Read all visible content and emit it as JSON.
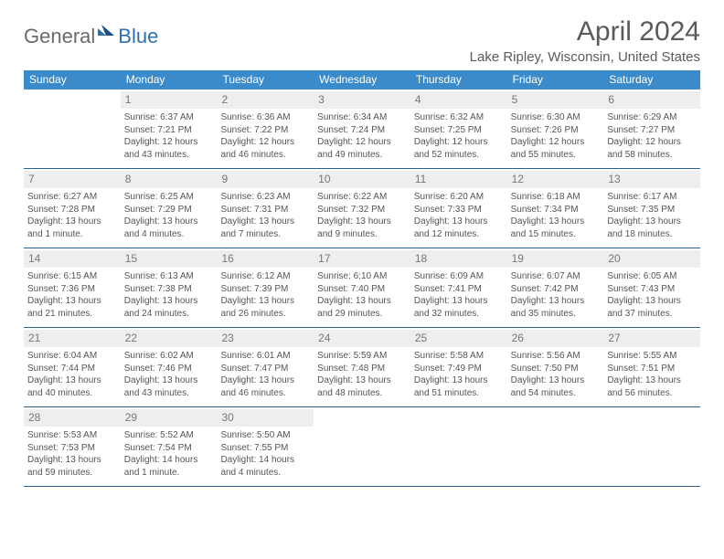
{
  "logo": {
    "general": "General",
    "blue": "Blue"
  },
  "title": "April 2024",
  "location": "Lake Ripley, Wisconsin, United States",
  "colors": {
    "header_bg": "#3b8bca",
    "border": "#2d5f8f",
    "daynum_bg": "#eeeeee",
    "text": "#555555"
  },
  "dayNames": [
    "Sunday",
    "Monday",
    "Tuesday",
    "Wednesday",
    "Thursday",
    "Friday",
    "Saturday"
  ],
  "weeks": [
    [
      null,
      {
        "n": "1",
        "sr": "Sunrise: 6:37 AM",
        "ss": "Sunset: 7:21 PM",
        "dl": "Daylight: 12 hours and 43 minutes."
      },
      {
        "n": "2",
        "sr": "Sunrise: 6:36 AM",
        "ss": "Sunset: 7:22 PM",
        "dl": "Daylight: 12 hours and 46 minutes."
      },
      {
        "n": "3",
        "sr": "Sunrise: 6:34 AM",
        "ss": "Sunset: 7:24 PM",
        "dl": "Daylight: 12 hours and 49 minutes."
      },
      {
        "n": "4",
        "sr": "Sunrise: 6:32 AM",
        "ss": "Sunset: 7:25 PM",
        "dl": "Daylight: 12 hours and 52 minutes."
      },
      {
        "n": "5",
        "sr": "Sunrise: 6:30 AM",
        "ss": "Sunset: 7:26 PM",
        "dl": "Daylight: 12 hours and 55 minutes."
      },
      {
        "n": "6",
        "sr": "Sunrise: 6:29 AM",
        "ss": "Sunset: 7:27 PM",
        "dl": "Daylight: 12 hours and 58 minutes."
      }
    ],
    [
      {
        "n": "7",
        "sr": "Sunrise: 6:27 AM",
        "ss": "Sunset: 7:28 PM",
        "dl": "Daylight: 13 hours and 1 minute."
      },
      {
        "n": "8",
        "sr": "Sunrise: 6:25 AM",
        "ss": "Sunset: 7:29 PM",
        "dl": "Daylight: 13 hours and 4 minutes."
      },
      {
        "n": "9",
        "sr": "Sunrise: 6:23 AM",
        "ss": "Sunset: 7:31 PM",
        "dl": "Daylight: 13 hours and 7 minutes."
      },
      {
        "n": "10",
        "sr": "Sunrise: 6:22 AM",
        "ss": "Sunset: 7:32 PM",
        "dl": "Daylight: 13 hours and 9 minutes."
      },
      {
        "n": "11",
        "sr": "Sunrise: 6:20 AM",
        "ss": "Sunset: 7:33 PM",
        "dl": "Daylight: 13 hours and 12 minutes."
      },
      {
        "n": "12",
        "sr": "Sunrise: 6:18 AM",
        "ss": "Sunset: 7:34 PM",
        "dl": "Daylight: 13 hours and 15 minutes."
      },
      {
        "n": "13",
        "sr": "Sunrise: 6:17 AM",
        "ss": "Sunset: 7:35 PM",
        "dl": "Daylight: 13 hours and 18 minutes."
      }
    ],
    [
      {
        "n": "14",
        "sr": "Sunrise: 6:15 AM",
        "ss": "Sunset: 7:36 PM",
        "dl": "Daylight: 13 hours and 21 minutes."
      },
      {
        "n": "15",
        "sr": "Sunrise: 6:13 AM",
        "ss": "Sunset: 7:38 PM",
        "dl": "Daylight: 13 hours and 24 minutes."
      },
      {
        "n": "16",
        "sr": "Sunrise: 6:12 AM",
        "ss": "Sunset: 7:39 PM",
        "dl": "Daylight: 13 hours and 26 minutes."
      },
      {
        "n": "17",
        "sr": "Sunrise: 6:10 AM",
        "ss": "Sunset: 7:40 PM",
        "dl": "Daylight: 13 hours and 29 minutes."
      },
      {
        "n": "18",
        "sr": "Sunrise: 6:09 AM",
        "ss": "Sunset: 7:41 PM",
        "dl": "Daylight: 13 hours and 32 minutes."
      },
      {
        "n": "19",
        "sr": "Sunrise: 6:07 AM",
        "ss": "Sunset: 7:42 PM",
        "dl": "Daylight: 13 hours and 35 minutes."
      },
      {
        "n": "20",
        "sr": "Sunrise: 6:05 AM",
        "ss": "Sunset: 7:43 PM",
        "dl": "Daylight: 13 hours and 37 minutes."
      }
    ],
    [
      {
        "n": "21",
        "sr": "Sunrise: 6:04 AM",
        "ss": "Sunset: 7:44 PM",
        "dl": "Daylight: 13 hours and 40 minutes."
      },
      {
        "n": "22",
        "sr": "Sunrise: 6:02 AM",
        "ss": "Sunset: 7:46 PM",
        "dl": "Daylight: 13 hours and 43 minutes."
      },
      {
        "n": "23",
        "sr": "Sunrise: 6:01 AM",
        "ss": "Sunset: 7:47 PM",
        "dl": "Daylight: 13 hours and 46 minutes."
      },
      {
        "n": "24",
        "sr": "Sunrise: 5:59 AM",
        "ss": "Sunset: 7:48 PM",
        "dl": "Daylight: 13 hours and 48 minutes."
      },
      {
        "n": "25",
        "sr": "Sunrise: 5:58 AM",
        "ss": "Sunset: 7:49 PM",
        "dl": "Daylight: 13 hours and 51 minutes."
      },
      {
        "n": "26",
        "sr": "Sunrise: 5:56 AM",
        "ss": "Sunset: 7:50 PM",
        "dl": "Daylight: 13 hours and 54 minutes."
      },
      {
        "n": "27",
        "sr": "Sunrise: 5:55 AM",
        "ss": "Sunset: 7:51 PM",
        "dl": "Daylight: 13 hours and 56 minutes."
      }
    ],
    [
      {
        "n": "28",
        "sr": "Sunrise: 5:53 AM",
        "ss": "Sunset: 7:53 PM",
        "dl": "Daylight: 13 hours and 59 minutes."
      },
      {
        "n": "29",
        "sr": "Sunrise: 5:52 AM",
        "ss": "Sunset: 7:54 PM",
        "dl": "Daylight: 14 hours and 1 minute."
      },
      {
        "n": "30",
        "sr": "Sunrise: 5:50 AM",
        "ss": "Sunset: 7:55 PM",
        "dl": "Daylight: 14 hours and 4 minutes."
      },
      null,
      null,
      null,
      null
    ]
  ]
}
